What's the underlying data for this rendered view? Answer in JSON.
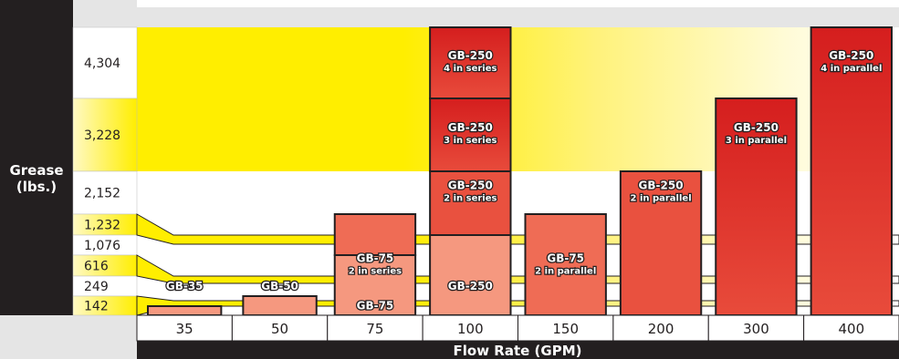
{
  "chart_data": {
    "type": "bar",
    "xlabel": "Flow Rate (GPM)",
    "ylabel": [
      "Grease",
      "(lbs.)"
    ],
    "x": [
      "35",
      "50",
      "75",
      "100",
      "150",
      "200",
      "300",
      "400"
    ],
    "y_ticks": [
      {
        "label": "4,304",
        "value": 4304,
        "highlight": false
      },
      {
        "label": "3,228",
        "value": 3228,
        "highlight": true
      },
      {
        "label": "2,152",
        "value": 2152,
        "highlight": false
      },
      {
        "label": "1,232",
        "value": 1232,
        "highlight": true
      },
      {
        "label": "1,076",
        "value": 1076,
        "highlight": false
      },
      {
        "label": "616",
        "value": 616,
        "highlight": true
      },
      {
        "label": "249",
        "value": 249,
        "highlight": false
      },
      {
        "label": "142",
        "value": 142,
        "highlight": true
      }
    ],
    "stacks": [
      {
        "x": "35",
        "segments": [
          {
            "value": 142
          }
        ],
        "labels": [
          {
            "lines": [
              "GB-35"
            ],
            "at": 249
          }
        ]
      },
      {
        "x": "50",
        "segments": [
          {
            "value": 249
          }
        ],
        "labels": [
          {
            "lines": [
              "GB-50"
            ],
            "at": 249
          }
        ]
      },
      {
        "x": "75",
        "segments": [
          {
            "value": 616
          },
          {
            "value": 1232
          }
        ],
        "labels": [
          {
            "lines": [
              "GB-75"
            ],
            "at": 142
          },
          {
            "lines": [
              "GB-75",
              "2 in series"
            ],
            "at": 616
          }
        ]
      },
      {
        "x": "100",
        "segments": [
          {
            "value": 1076
          },
          {
            "value": 2152
          },
          {
            "value": 3228
          },
          {
            "value": 4304
          }
        ],
        "labels": [
          {
            "lines": [
              "GB-250"
            ],
            "at": 249
          },
          {
            "lines": [
              "GB-250",
              "2 in series"
            ],
            "at": 2152
          },
          {
            "lines": [
              "GB-250",
              "3 in series"
            ],
            "at": 3228
          },
          {
            "lines": [
              "GB-250",
              "4 in series"
            ],
            "at": 4304
          }
        ]
      },
      {
        "x": "150",
        "segments": [
          {
            "value": 1232
          }
        ],
        "labels": [
          {
            "lines": [
              "GB-75",
              "2 in parallel"
            ],
            "at": 616
          }
        ]
      },
      {
        "x": "200",
        "segments": [
          {
            "value": 2152
          }
        ],
        "labels": [
          {
            "lines": [
              "GB-250",
              "2 in parallel"
            ],
            "at": 2152
          }
        ]
      },
      {
        "x": "300",
        "segments": [
          {
            "value": 3228
          }
        ],
        "labels": [
          {
            "lines": [
              "GB-250",
              "3 in parallel"
            ],
            "at": 3228
          }
        ]
      },
      {
        "x": "400",
        "segments": [
          {
            "value": 4304
          }
        ],
        "labels": [
          {
            "lines": [
              "GB-250",
              "4 in parallel"
            ],
            "at": 4304
          }
        ]
      }
    ]
  }
}
